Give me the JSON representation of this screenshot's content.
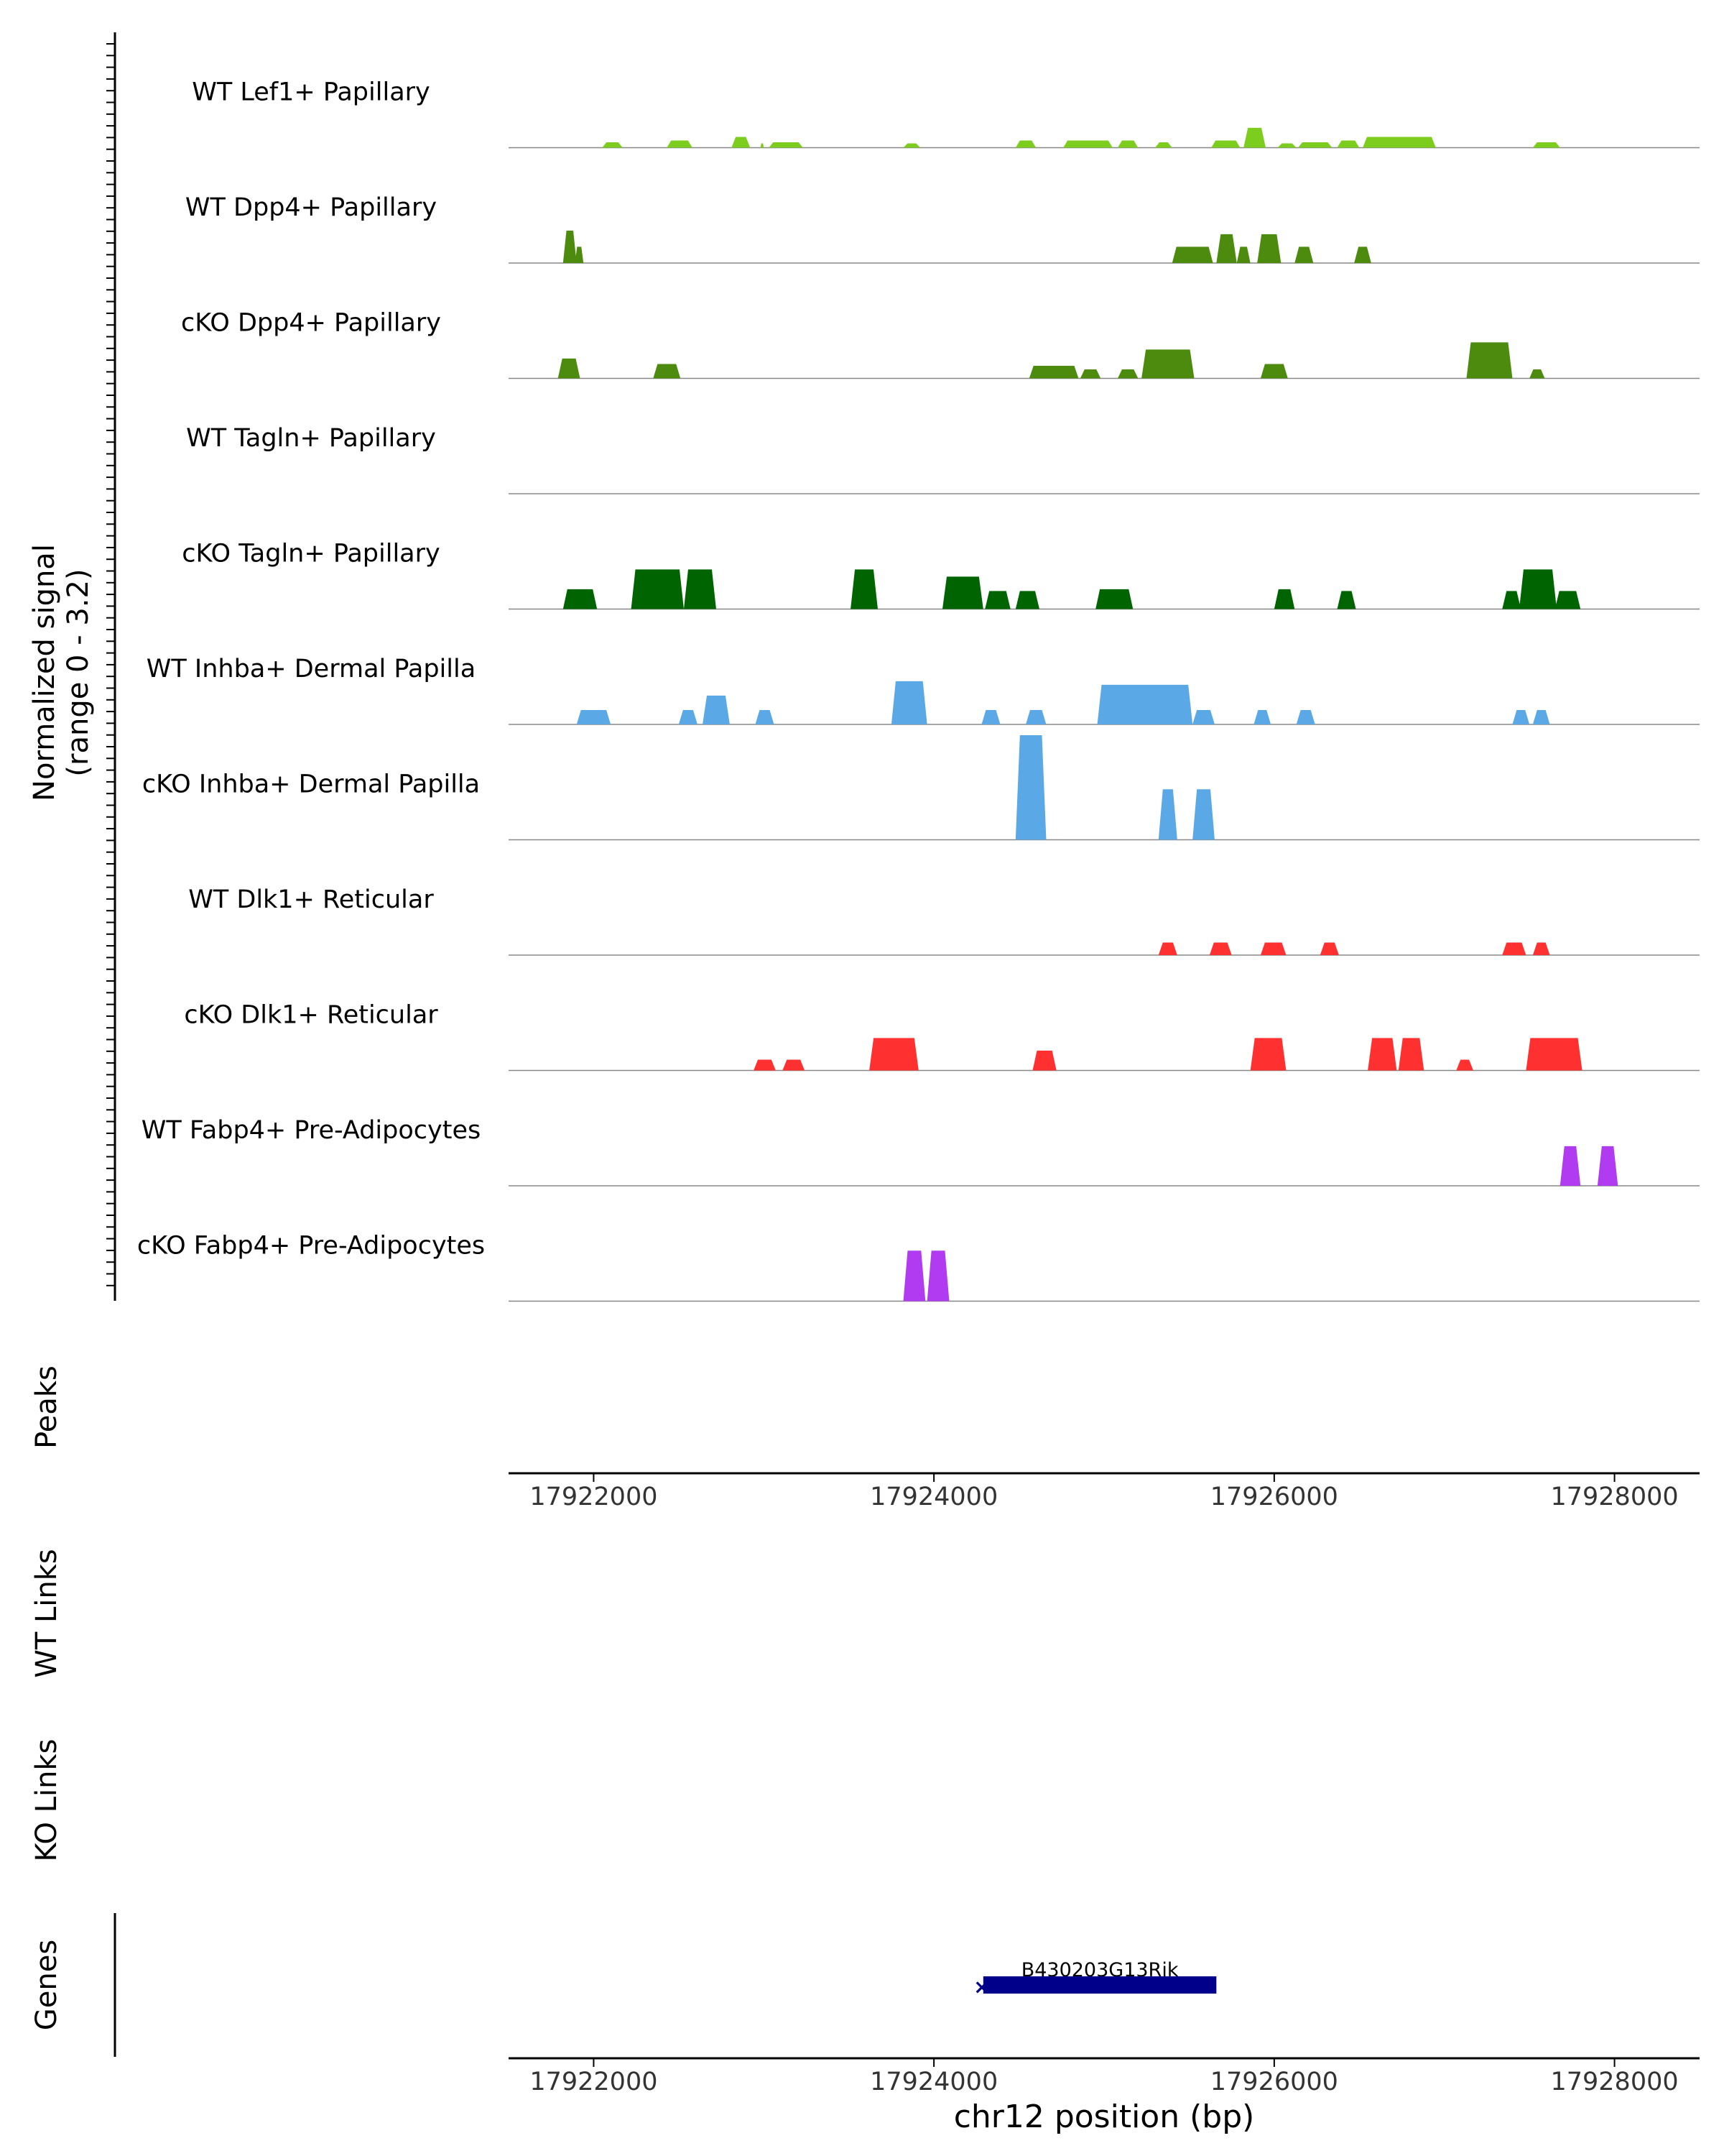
{
  "chart_data": {
    "type": "area",
    "region": "chr12",
    "x_label": "chr12 position (bp)",
    "x_range": [
      17921500,
      17928500
    ],
    "x_ticks": [
      "17922000",
      "17924000",
      "17926000",
      "17928000"
    ],
    "x_tick_values": [
      17922000,
      17924000,
      17926000,
      17928000
    ],
    "coverage_axis_label_line1": "Normalized signal",
    "coverage_axis_label_line2": "(range 0 - 3.2)",
    "y_max": 3.2,
    "panel_labels": {
      "peaks": "Peaks",
      "wt_links": "WT Links",
      "ko_links": "KO Links",
      "genes": "Genes"
    },
    "tracks": [
      {
        "name": "WT Lef1+ Papillary",
        "color": "#7ccd1d",
        "peaks": [
          [
            17922050,
            17922170,
            0.15
          ],
          [
            17922430,
            17922580,
            0.2
          ],
          [
            17922810,
            17922920,
            0.3
          ],
          [
            17922980,
            17923000,
            0.12
          ],
          [
            17923030,
            17923230,
            0.15
          ],
          [
            17923820,
            17923920,
            0.12
          ],
          [
            17924480,
            17924600,
            0.2
          ],
          [
            17924760,
            17925050,
            0.2
          ],
          [
            17925080,
            17925200,
            0.2
          ],
          [
            17925300,
            17925400,
            0.15
          ],
          [
            17925630,
            17925800,
            0.2
          ],
          [
            17925820,
            17925950,
            0.55
          ],
          [
            17926020,
            17926130,
            0.12
          ],
          [
            17926140,
            17926340,
            0.15
          ],
          [
            17926370,
            17926500,
            0.2
          ],
          [
            17926520,
            17926950,
            0.3
          ],
          [
            17927520,
            17927680,
            0.15
          ]
        ]
      },
      {
        "name": "WT Dpp4+ Papillary",
        "color": "#4d8b0e",
        "peaks": [
          [
            17921820,
            17921900,
            0.9
          ],
          [
            17921890,
            17921940,
            0.45
          ],
          [
            17925400,
            17925640,
            0.45
          ],
          [
            17925660,
            17925780,
            0.8
          ],
          [
            17925780,
            17925860,
            0.45
          ],
          [
            17925900,
            17926040,
            0.8
          ],
          [
            17926120,
            17926230,
            0.45
          ],
          [
            17926470,
            17926570,
            0.45
          ]
        ]
      },
      {
        "name": "cKO Dpp4+ Papillary",
        "color": "#4d8b0e",
        "peaks": [
          [
            17921790,
            17921920,
            0.55
          ],
          [
            17922350,
            17922510,
            0.4
          ],
          [
            17924560,
            17924850,
            0.35
          ],
          [
            17924860,
            17924980,
            0.25
          ],
          [
            17925080,
            17925200,
            0.25
          ],
          [
            17925220,
            17925530,
            0.8
          ],
          [
            17925920,
            17926080,
            0.4
          ],
          [
            17927130,
            17927400,
            1.0
          ],
          [
            17927500,
            17927590,
            0.25
          ]
        ]
      },
      {
        "name": "WT Tagln+ Papillary",
        "color": "#006400",
        "peaks": []
      },
      {
        "name": "cKO Tagln+ Papillary",
        "color": "#006400",
        "peaks": [
          [
            17921820,
            17922020,
            0.55
          ],
          [
            17922220,
            17922530,
            1.1
          ],
          [
            17922530,
            17922720,
            1.1
          ],
          [
            17923510,
            17923670,
            1.1
          ],
          [
            17924050,
            17924290,
            0.9
          ],
          [
            17924300,
            17924450,
            0.5
          ],
          [
            17924480,
            17924620,
            0.5
          ],
          [
            17924950,
            17925170,
            0.55
          ],
          [
            17926000,
            17926120,
            0.55
          ],
          [
            17926370,
            17926480,
            0.5
          ],
          [
            17927340,
            17927450,
            0.5
          ],
          [
            17927440,
            17927660,
            1.1
          ],
          [
            17927650,
            17927800,
            0.5
          ]
        ]
      },
      {
        "name": "WT Inhba+ Dermal Papilla",
        "color": "#5aa8e6",
        "peaks": [
          [
            17921900,
            17922100,
            0.4
          ],
          [
            17922500,
            17922610,
            0.4
          ],
          [
            17922640,
            17922800,
            0.8
          ],
          [
            17922950,
            17923060,
            0.4
          ],
          [
            17923750,
            17923960,
            1.2
          ],
          [
            17924280,
            17924390,
            0.4
          ],
          [
            17924540,
            17924660,
            0.4
          ],
          [
            17924960,
            17925520,
            1.1
          ],
          [
            17925520,
            17925650,
            0.4
          ],
          [
            17925880,
            17925980,
            0.4
          ],
          [
            17926130,
            17926240,
            0.4
          ],
          [
            17927400,
            17927500,
            0.4
          ],
          [
            17927520,
            17927620,
            0.4
          ]
        ]
      },
      {
        "name": "cKO Inhba+ Dermal Papilla",
        "color": "#5aa8e6",
        "peaks": [
          [
            17924480,
            17924660,
            2.9
          ],
          [
            17925320,
            17925430,
            1.4
          ],
          [
            17925520,
            17925650,
            1.4
          ]
        ]
      },
      {
        "name": "WT Dlk1+ Reticular",
        "color": "#fe3030",
        "peaks": [
          [
            17925320,
            17925430,
            0.35
          ],
          [
            17925620,
            17925750,
            0.35
          ],
          [
            17925920,
            17926070,
            0.35
          ],
          [
            17926270,
            17926380,
            0.35
          ],
          [
            17927340,
            17927480,
            0.35
          ],
          [
            17927520,
            17927620,
            0.35
          ]
        ]
      },
      {
        "name": "cKO Dlk1+ Reticular",
        "color": "#fe3030",
        "peaks": [
          [
            17922940,
            17923070,
            0.3
          ],
          [
            17923110,
            17923240,
            0.3
          ],
          [
            17923620,
            17923910,
            0.9
          ],
          [
            17924580,
            17924720,
            0.55
          ],
          [
            17925860,
            17926070,
            0.9
          ],
          [
            17926550,
            17926720,
            0.9
          ],
          [
            17926730,
            17926880,
            0.9
          ],
          [
            17927070,
            17927170,
            0.3
          ],
          [
            17927480,
            17927810,
            0.9
          ]
        ]
      },
      {
        "name": "WT Fabp4+ Pre-Adipocytes",
        "color": "#b03bf0",
        "peaks": [
          [
            17927680,
            17927800,
            1.1
          ],
          [
            17927900,
            17928020,
            1.1
          ]
        ]
      },
      {
        "name": "cKO Fabp4+ Pre-Adipocytes",
        "color": "#b03bf0",
        "peaks": [
          [
            17923820,
            17923950,
            1.4
          ],
          [
            17923960,
            17924090,
            1.4
          ]
        ]
      }
    ],
    "gene": {
      "name": "B430203G13Rik",
      "start": 17924290,
      "end": 17925660,
      "strand": "-",
      "color": "#00008b"
    }
  }
}
